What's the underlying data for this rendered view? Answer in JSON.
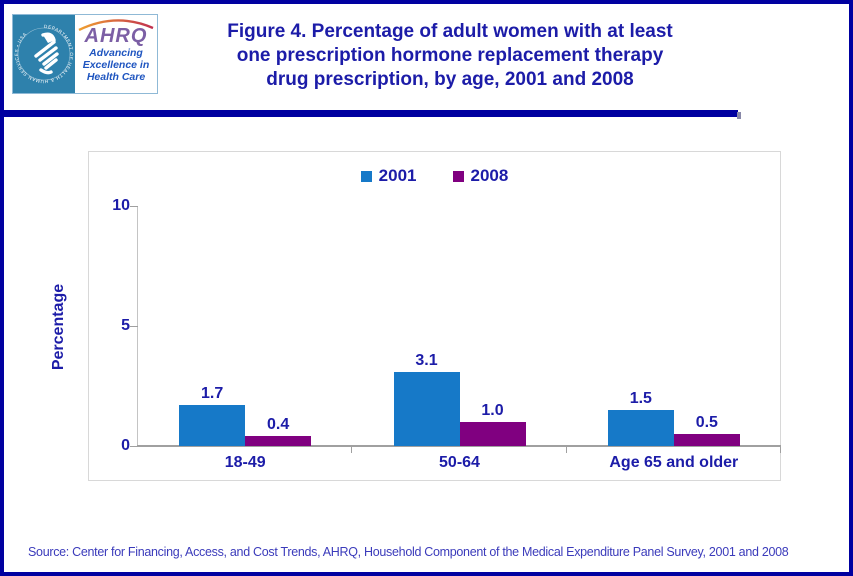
{
  "header": {
    "title_lines": [
      "Figure 4. Percentage of adult women with at least",
      "one prescription hormone replacement therapy",
      "drug prescription, by age, 2001 and 2008"
    ],
    "logos": {
      "hhs_ring_text": "DEPARTMENT OF HEALTH & HUMAN SERVICES • USA",
      "ahrq_acronym": "AHRQ",
      "ahrq_tagline": "Advancing Excellence in Health Care"
    }
  },
  "chart_data": {
    "type": "bar",
    "title": "Figure 4. Percentage of adult women with at least one prescription hormone replacement therapy drug prescription, by age, 2001 and 2008",
    "categories": [
      "18-49",
      "50-64",
      "Age 65 and older"
    ],
    "series": [
      {
        "name": "2001",
        "color": "#1679c8",
        "values": [
          1.7,
          3.1,
          1.5
        ]
      },
      {
        "name": "2008",
        "color": "#800080",
        "values": [
          0.4,
          1.0,
          0.5
        ]
      }
    ],
    "xlabel": "",
    "ylabel": "Percentage",
    "ylim": [
      0,
      10
    ],
    "yticks": [
      0,
      5,
      10
    ],
    "grid": false,
    "legend_position": "top-center",
    "data_labels": true
  },
  "footer": {
    "source": "Source: Center for Financing, Access, and Cost Trends, AHRQ, Household Component of the Medical Expenditure Panel Survey, 2001 and 2008"
  },
  "colors": {
    "navy_text": "#1c1ca8",
    "border_navy": "#0000a0",
    "bar_2001": "#1679c8",
    "bar_2008": "#800080",
    "axis_gray": "#a0a0a0",
    "frame_gray": "#d8d8d8",
    "source_text": "#3b3bbb",
    "hhs_logo_blue": "#2e81ac",
    "ahrq_purple": "#7c5fa5",
    "ahrq_tagline_blue": "#1f55c0"
  }
}
